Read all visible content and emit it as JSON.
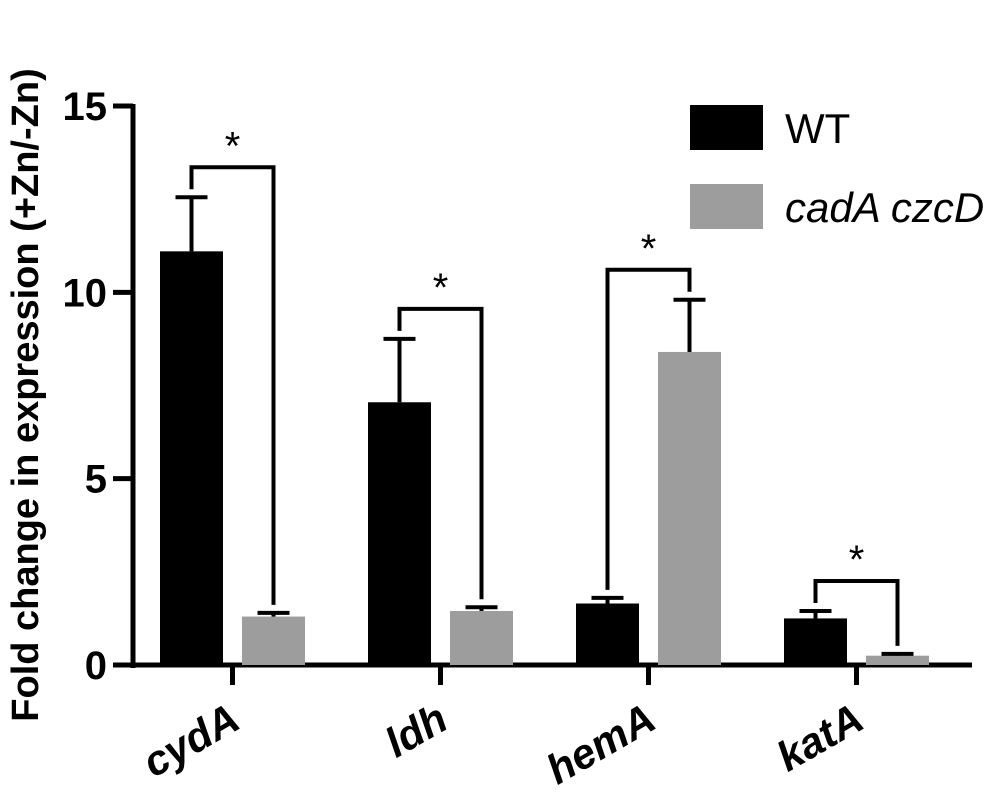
{
  "chart_data": {
    "type": "bar",
    "categories": [
      "cydA",
      "ldh",
      "hemA",
      "katA"
    ],
    "series": [
      {
        "name": "WT",
        "color": "#000000",
        "values": [
          11.1,
          7.05,
          1.65,
          1.25
        ],
        "errors": [
          1.45,
          1.7,
          0.15,
          0.2
        ]
      },
      {
        "name": "cadA czcD",
        "color": "#9d9d9d",
        "values": [
          1.3,
          1.45,
          8.4,
          0.25
        ],
        "errors": [
          0.1,
          0.1,
          1.4,
          0.05
        ]
      }
    ],
    "ylabel": "Fold change in expression (+Zn/-Zn)",
    "ylim": [
      0,
      15
    ],
    "yticks": [
      0,
      5,
      10,
      15
    ],
    "significance": [
      "*",
      "*",
      "*",
      "*"
    ],
    "legend_position": "top-right",
    "grid": false
  }
}
